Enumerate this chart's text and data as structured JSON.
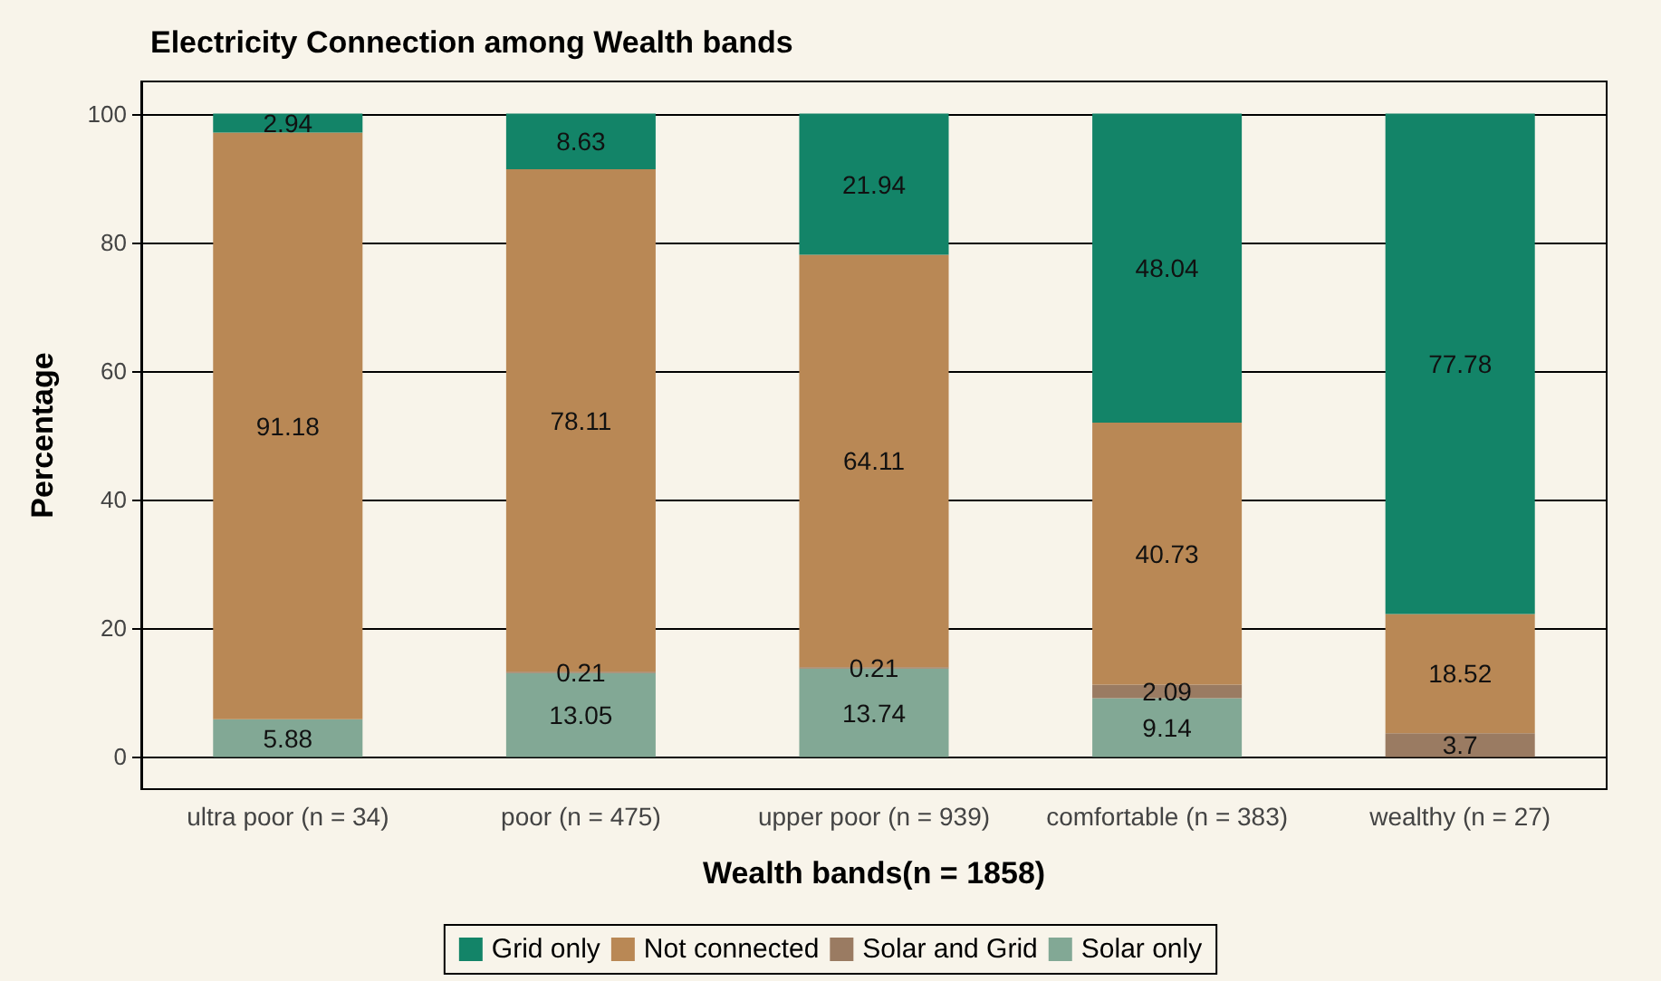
{
  "chart_data": {
    "type": "bar",
    "title": "Electricity Connection among Wealth bands",
    "xlabel": "Wealth bands(n = 1858)",
    "ylabel": "Percentage",
    "categories": [
      "ultra poor (n = 34)",
      "poor (n = 475)",
      "upper poor (n = 939)",
      "comfortable (n = 383)",
      "wealthy (n = 27)"
    ],
    "stacked": true,
    "data_labels": true,
    "grid": "y",
    "legend": "bottom",
    "ylim": [
      -5,
      105
    ],
    "yticks": [
      0,
      20,
      40,
      60,
      80,
      100
    ],
    "series": [
      {
        "name": "Solar only",
        "color": "#82a895",
        "values": [
          5.88,
          13.05,
          13.74,
          9.14,
          null
        ]
      },
      {
        "name": "Solar and Grid",
        "color": "#9a7b62",
        "values": [
          null,
          0.21,
          0.21,
          2.09,
          3.7
        ]
      },
      {
        "name": "Not connected",
        "color": "#b98855",
        "values": [
          91.18,
          78.11,
          64.11,
          40.73,
          18.52
        ]
      },
      {
        "name": "Grid only",
        "color": "#138468",
        "values": [
          2.94,
          8.63,
          21.94,
          48.04,
          77.78
        ]
      }
    ]
  }
}
